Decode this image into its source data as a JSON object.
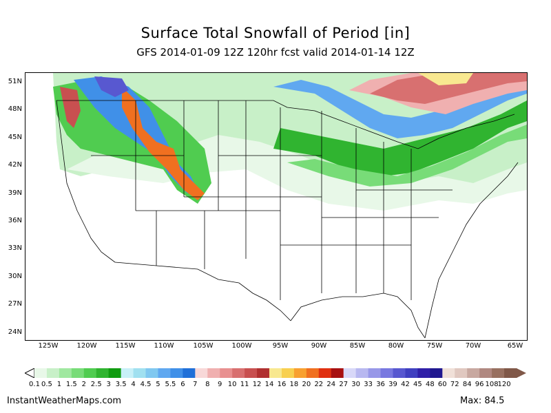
{
  "header": {
    "title": "Surface Total Snowfall of Period [in]",
    "subtitle": "GFS 2014-01-09 12Z 120hr fcst valid 2014-01-14 12Z"
  },
  "axes": {
    "latitudes": [
      "51N",
      "48N",
      "45N",
      "42N",
      "39N",
      "36N",
      "33N",
      "30N",
      "27N",
      "24N"
    ],
    "longitudes": [
      "125W",
      "120W",
      "115W",
      "110W",
      "105W",
      "100W",
      "95W",
      "90W",
      "85W",
      "80W",
      "75W",
      "70W",
      "65W"
    ]
  },
  "legend": {
    "labels": [
      "0.1",
      "0.5",
      "1",
      "1.5",
      "2",
      "2.5",
      "3",
      "3.5",
      "4",
      "4.5",
      "5",
      "5.5",
      "6",
      "7",
      "8",
      "9",
      "10",
      "11",
      "12",
      "14",
      "16",
      "18",
      "20",
      "22",
      "24",
      "27",
      "30",
      "33",
      "36",
      "39",
      "42",
      "45",
      "48",
      "60",
      "72",
      "84",
      "96",
      "108",
      "120"
    ],
    "colors": [
      "#e8f8e8",
      "#c8f0c8",
      "#a0e8a0",
      "#78dc78",
      "#50cc50",
      "#30b430",
      "#109c10",
      "#c8f0f8",
      "#a0e0f0",
      "#80c8f0",
      "#60a8f0",
      "#4090e8",
      "#2070d8",
      "#f8d8d8",
      "#f0b0b0",
      "#e89090",
      "#d87070",
      "#c85050",
      "#b03030",
      "#f8e890",
      "#f8d050",
      "#f8a030",
      "#f07020",
      "#e03010",
      "#a81010",
      "#d8d8f8",
      "#b8b8f0",
      "#9898e8",
      "#7878e0",
      "#5858d0",
      "#4040c0",
      "#3020a8",
      "#201890",
      "#f0e0d8",
      "#e0c8c0",
      "#c8a8a0",
      "#b08880",
      "#987060",
      "#805848"
    ]
  },
  "footer": {
    "site": "InstantWeatherMaps.com",
    "max_label": "Max:",
    "max_value": "84.5"
  },
  "colors": {
    "land_outline": "#000000",
    "background": "#ffffff"
  }
}
